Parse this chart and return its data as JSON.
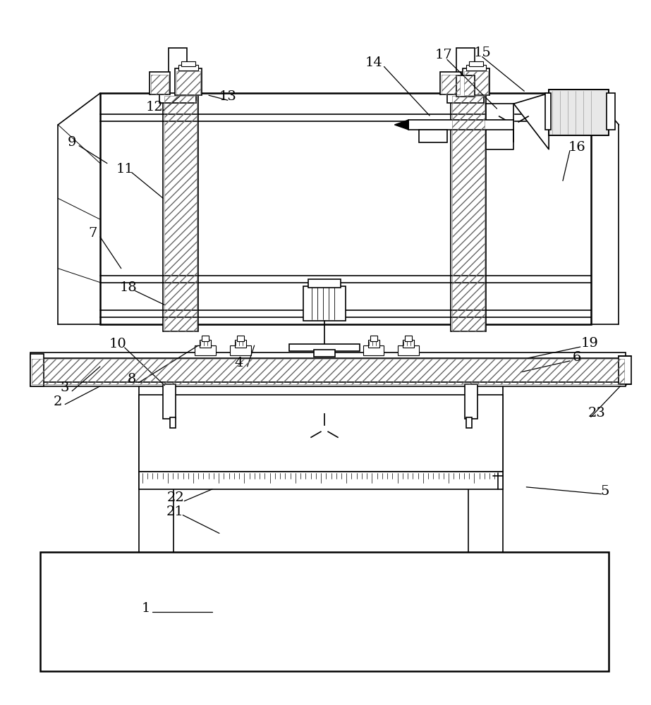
{
  "bg_color": "#ffffff",
  "lw": 1.2,
  "lw_thick": 1.8,
  "lw_thin": 0.7
}
